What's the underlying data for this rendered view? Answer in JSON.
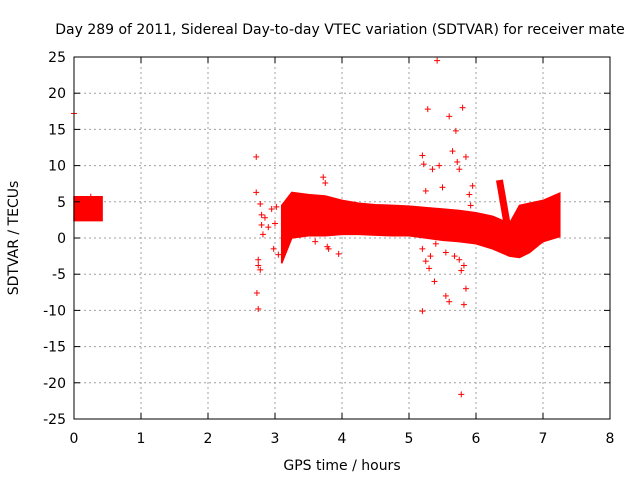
{
  "chart_data": {
    "type": "scatter",
    "title": "Day 289 of 2011, Sidereal Day-to-day VTEC variation (SDTVAR) for receiver mate",
    "xlabel": "GPS time / hours",
    "ylabel": "SDTVAR / TECUs",
    "xlim": [
      0,
      8
    ],
    "ylim": [
      -25,
      25
    ],
    "xticks": [
      0,
      1,
      2,
      3,
      4,
      5,
      6,
      7,
      8
    ],
    "yticks": [
      -25,
      -20,
      -15,
      -10,
      -5,
      0,
      5,
      10,
      15,
      20,
      25
    ],
    "grid": true,
    "legend": "none",
    "marker": "+",
    "series_color": "#ff0000",
    "bands": [
      {
        "name": "block-a",
        "x": [
          0.0,
          0.42
        ],
        "lower": [
          2.4,
          2.4
        ],
        "upper": [
          5.7,
          5.7
        ]
      },
      {
        "name": "block-b",
        "x": [
          3.1,
          3.25,
          3.5,
          3.75,
          4.0,
          4.25,
          4.5,
          4.75,
          5.0,
          5.25,
          5.5,
          5.75,
          6.0,
          6.25,
          6.5,
          6.65,
          6.8,
          7.0,
          7.25
        ],
        "lower": [
          -3.5,
          0.0,
          0.3,
          0.3,
          0.5,
          0.5,
          0.4,
          0.3,
          0.3,
          0.0,
          -0.3,
          -0.5,
          -0.8,
          -1.5,
          -2.5,
          -2.7,
          -2.0,
          -0.5,
          0.2
        ],
        "upper": [
          4.5,
          6.3,
          6.0,
          5.8,
          5.2,
          4.8,
          4.6,
          4.5,
          4.4,
          4.2,
          4.0,
          3.8,
          3.5,
          3.0,
          2.0,
          4.5,
          4.8,
          5.2,
          6.2
        ]
      }
    ],
    "spike": {
      "x": 6.35,
      "lower": 0.0,
      "upper": 8.0
    },
    "points": [
      [
        0.0,
        17.2
      ],
      [
        0.25,
        5.7
      ],
      [
        0.3,
        4.8
      ],
      [
        0.35,
        4.0
      ],
      [
        2.72,
        11.2
      ],
      [
        2.72,
        6.3
      ],
      [
        2.75,
        -3.0
      ],
      [
        2.75,
        -3.8
      ],
      [
        2.78,
        4.7
      ],
      [
        2.78,
        -4.4
      ],
      [
        2.73,
        -7.6
      ],
      [
        2.75,
        -9.8
      ],
      [
        2.8,
        3.2
      ],
      [
        2.8,
        1.8
      ],
      [
        2.82,
        0.5
      ],
      [
        2.85,
        2.8
      ],
      [
        2.9,
        1.5
      ],
      [
        2.95,
        4.0
      ],
      [
        2.98,
        -1.5
      ],
      [
        3.02,
        4.3
      ],
      [
        3.05,
        -2.3
      ],
      [
        3.0,
        2.0
      ],
      [
        3.72,
        8.4
      ],
      [
        3.75,
        7.6
      ],
      [
        3.78,
        -1.2
      ],
      [
        3.8,
        -1.5
      ],
      [
        3.6,
        -0.5
      ],
      [
        3.95,
        -2.2
      ],
      [
        5.2,
        11.4
      ],
      [
        5.22,
        10.2
      ],
      [
        5.25,
        6.5
      ],
      [
        5.28,
        17.8
      ],
      [
        5.2,
        -1.5
      ],
      [
        5.25,
        -3.2
      ],
      [
        5.3,
        -4.2
      ],
      [
        5.2,
        -10.1
      ],
      [
        5.32,
        -2.5
      ],
      [
        5.38,
        -6.0
      ],
      [
        5.42,
        24.5
      ],
      [
        5.45,
        10.0
      ],
      [
        5.5,
        7.0
      ],
      [
        5.55,
        -2.0
      ],
      [
        5.55,
        -8.0
      ],
      [
        5.6,
        16.8
      ],
      [
        5.65,
        12.0
      ],
      [
        5.7,
        14.8
      ],
      [
        5.72,
        10.5
      ],
      [
        5.75,
        9.5
      ],
      [
        5.75,
        -3.0
      ],
      [
        5.78,
        -4.5
      ],
      [
        5.8,
        18.0
      ],
      [
        5.82,
        -3.8
      ],
      [
        5.85,
        11.2
      ],
      [
        5.85,
        -7.0
      ],
      [
        5.82,
        -9.2
      ],
      [
        5.78,
        -21.6
      ],
      [
        5.9,
        6.0
      ],
      [
        5.92,
        4.5
      ],
      [
        5.6,
        -8.8
      ],
      [
        5.35,
        9.5
      ],
      [
        5.48,
        3.2
      ],
      [
        5.95,
        7.2
      ],
      [
        5.4,
        -0.8
      ],
      [
        5.68,
        -2.5
      ]
    ]
  }
}
